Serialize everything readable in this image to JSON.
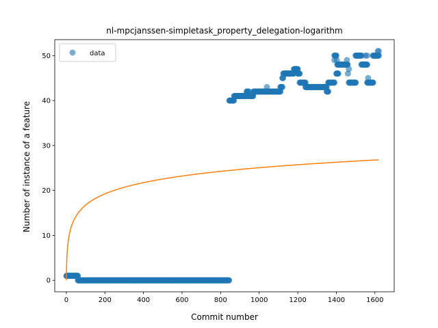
{
  "chart_data": {
    "type": "scatter",
    "title": "nl-mpcjanssen-simpletask_property_delegation-logarithm",
    "xlabel": "Commit number",
    "ylabel": "Number of instance of a feature",
    "xlim": [
      -60,
      1700
    ],
    "ylim": [
      -2.55,
      53.55
    ],
    "xticks": [
      0,
      200,
      400,
      600,
      800,
      1000,
      1200,
      1400,
      1600
    ],
    "yticks": [
      0,
      10,
      20,
      30,
      40,
      50
    ],
    "legend": {
      "placement": "upper-left",
      "entries": [
        "data"
      ]
    },
    "grid": false,
    "series": [
      {
        "name": "data",
        "kind": "scatter",
        "color": "#1f77b4",
        "segments": [
          {
            "x_start": 0,
            "x_end": 60,
            "y": 1
          },
          {
            "x_start": 60,
            "x_end": 845,
            "y": 0
          },
          {
            "x_start": 845,
            "x_end": 870,
            "y": 40
          },
          {
            "x_start": 870,
            "x_end": 935,
            "y": 41
          },
          {
            "x_start": 935,
            "x_end": 945,
            "y": 42
          },
          {
            "x_start": 945,
            "x_end": 970,
            "y": 41
          },
          {
            "x_start": 970,
            "x_end": 1110,
            "y": 42
          },
          {
            "x_start": 1110,
            "x_end": 1120,
            "y": 43
          },
          {
            "x_start": 1120,
            "x_end": 1125,
            "y": 45
          },
          {
            "x_start": 1125,
            "x_end": 1180,
            "y": 46
          },
          {
            "x_start": 1180,
            "x_end": 1200,
            "y": 47
          },
          {
            "x_start": 1200,
            "x_end": 1210,
            "y": 46
          },
          {
            "x_start": 1210,
            "x_end": 1240,
            "y": 44
          },
          {
            "x_start": 1240,
            "x_end": 1350,
            "y": 43
          },
          {
            "x_start": 1350,
            "x_end": 1358,
            "y": 42
          },
          {
            "x_start": 1358,
            "x_end": 1390,
            "y": 44
          },
          {
            "x_start": 1390,
            "x_end": 1400,
            "y": 50
          },
          {
            "x_start": 1400,
            "x_end": 1410,
            "y": 46
          },
          {
            "x_start": 1405,
            "x_end": 1460,
            "y": 48
          },
          {
            "x_start": 1465,
            "x_end": 1480,
            "y": 44
          },
          {
            "x_start": 1480,
            "x_end": 1500,
            "y": 44
          },
          {
            "x_start": 1500,
            "x_end": 1530,
            "y": 50
          },
          {
            "x_start": 1530,
            "x_end": 1560,
            "y": 48
          },
          {
            "x_start": 1560,
            "x_end": 1590,
            "y": 44
          },
          {
            "x_start": 1590,
            "x_end": 1620,
            "y": 50
          }
        ],
        "points": [
          {
            "x": 1040,
            "y": 43
          },
          {
            "x": 1390,
            "y": 49
          },
          {
            "x": 1403,
            "y": 49
          },
          {
            "x": 1440,
            "y": 48
          },
          {
            "x": 1455,
            "y": 49
          },
          {
            "x": 1460,
            "y": 46
          },
          {
            "x": 1465,
            "y": 47
          },
          {
            "x": 1475,
            "y": 44
          },
          {
            "x": 1500,
            "y": 44
          },
          {
            "x": 1520,
            "y": 50
          },
          {
            "x": 1545,
            "y": 48
          },
          {
            "x": 1550,
            "y": 50
          },
          {
            "x": 1560,
            "y": 50
          },
          {
            "x": 1565,
            "y": 45
          },
          {
            "x": 1575,
            "y": 44
          },
          {
            "x": 1590,
            "y": 44
          },
          {
            "x": 1605,
            "y": 50
          },
          {
            "x": 1615,
            "y": 51
          },
          {
            "x": 1620,
            "y": 51
          }
        ]
      },
      {
        "name": "",
        "kind": "line",
        "color": "#ff7f0e",
        "function": "logarithm",
        "x_range": [
          0,
          1620
        ],
        "samples": [
          {
            "x": 0,
            "y": 0
          },
          {
            "x": 2,
            "y": 4
          },
          {
            "x": 10,
            "y": 9.5
          },
          {
            "x": 20,
            "y": 11.8
          },
          {
            "x": 40,
            "y": 14.2
          },
          {
            "x": 60,
            "y": 15.6
          },
          {
            "x": 100,
            "y": 17.3
          },
          {
            "x": 200,
            "y": 19.4
          },
          {
            "x": 300,
            "y": 20.8
          },
          {
            "x": 400,
            "y": 21.8
          },
          {
            "x": 600,
            "y": 23.3
          },
          {
            "x": 800,
            "y": 24.4
          },
          {
            "x": 1000,
            "y": 25.1
          },
          {
            "x": 1200,
            "y": 25.7
          },
          {
            "x": 1400,
            "y": 26.2
          },
          {
            "x": 1620,
            "y": 26.8
          }
        ]
      }
    ]
  }
}
